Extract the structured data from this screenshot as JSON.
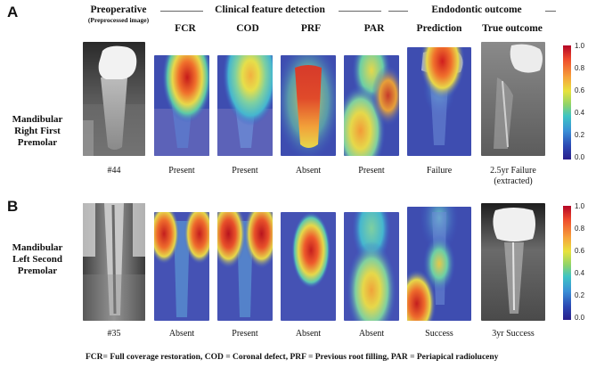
{
  "panels": [
    "A",
    "B"
  ],
  "headers": {
    "preoperative": "Preoperative",
    "preoperative_sub": "(Preprocessed image)",
    "clinical_group": "Clinical feature detection",
    "endodontic_group": "Endodontic outcome",
    "columns": [
      "FCR",
      "COD",
      "PRF",
      "PAR",
      "Prediction",
      "True outcome"
    ]
  },
  "rows": [
    {
      "label": [
        "Mandibular",
        "Right First",
        "Premolar"
      ],
      "captions": [
        "#44",
        "Present",
        "Present",
        "Absent",
        "Present",
        "Failure",
        "2.5yr Failure",
        "(extracted)"
      ]
    },
    {
      "label": [
        "Mandibular",
        "Left Second",
        "Premolar"
      ],
      "captions": [
        "#35",
        "Absent",
        "Present",
        "Absent",
        "Absent",
        "Success",
        "3yr Success",
        ""
      ]
    }
  ],
  "colorbar": {
    "ticks": [
      "1.0",
      "0.8",
      "0.6",
      "0.4",
      "0.2",
      "0.0"
    ],
    "colors": [
      "#b40426",
      "#ee4a2c",
      "#f6a33b",
      "#e8e23c",
      "#8ed36a",
      "#3ec4c4",
      "#3a8fd6",
      "#2b49b4",
      "#2a1f8c"
    ]
  },
  "footnote": "FCR= Full coverage restoration,  COD = Coronal defect,   PRF = Previous root filling,   PAR = Periapical radioluceny"
}
